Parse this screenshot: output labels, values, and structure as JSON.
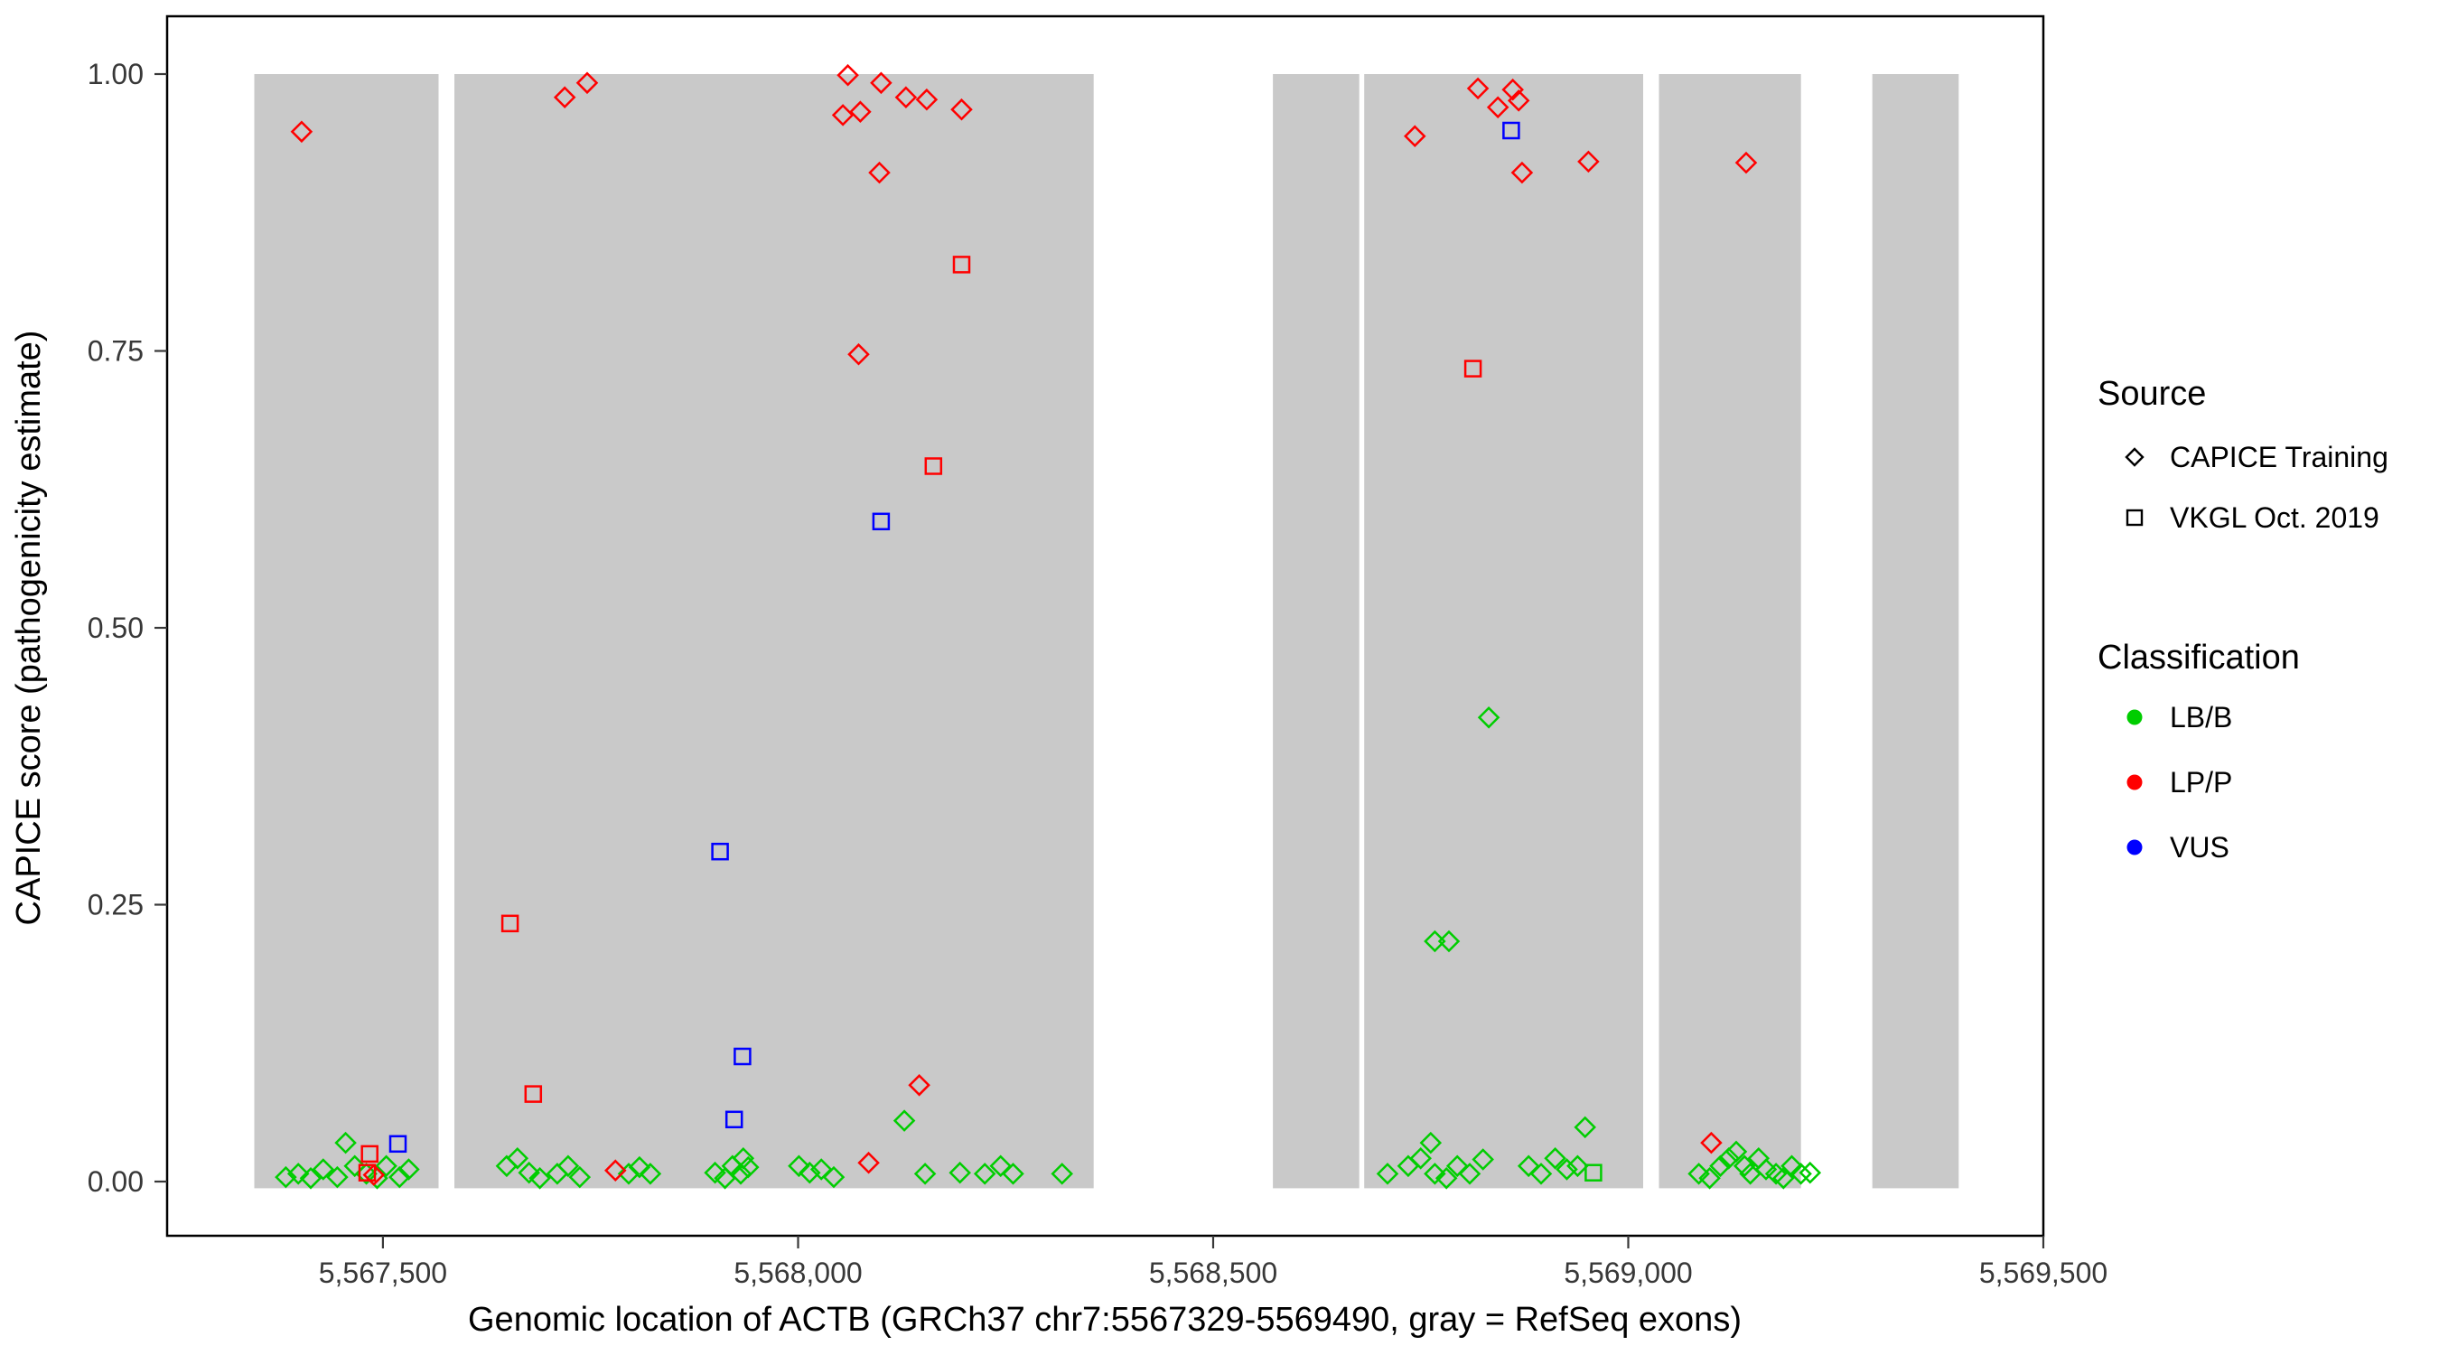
{
  "chart_data": {
    "type": "scatter",
    "title": "",
    "xlabel": "Genomic location of ACTB (GRCh37 chr7:5567329-5569490, gray = RefSeq exons)",
    "ylabel": "CAPICE score (pathogenicity estimate)",
    "xlim": [
      5567240,
      5569500
    ],
    "ylim": [
      0,
      1
    ],
    "grid": false,
    "legend_position": "right",
    "x_ticks": [
      {
        "value": 5567500,
        "label": "5,567,500"
      },
      {
        "value": 5568000,
        "label": "5,568,000"
      },
      {
        "value": 5568500,
        "label": "5,568,500"
      },
      {
        "value": 5569000,
        "label": "5,569,000"
      },
      {
        "value": 5569500,
        "label": "5,569,500"
      }
    ],
    "y_ticks": [
      {
        "value": 0.0,
        "label": "0.00"
      },
      {
        "value": 0.25,
        "label": "0.25"
      },
      {
        "value": 0.5,
        "label": "0.50"
      },
      {
        "value": 0.75,
        "label": "0.75"
      },
      {
        "value": 1.0,
        "label": "1.00"
      }
    ],
    "exon_color": "#C9C9C9",
    "refseq_exons": [
      {
        "start": 5567345,
        "end": 5567567
      },
      {
        "start": 5567586,
        "end": 5568356
      },
      {
        "start": 5568572,
        "end": 5568676
      },
      {
        "start": 5568682,
        "end": 5569018
      },
      {
        "start": 5569037,
        "end": 5569208
      },
      {
        "start": 5569294,
        "end": 5569398
      }
    ],
    "shape_by_source": {
      "CAPICE Training": "diamond",
      "VKGL Oct. 2019": "square"
    },
    "color_by_classification": {
      "LB/B": "#00CD00",
      "LP/P": "#FF0000",
      "VUS": "#0000FF"
    },
    "points_format": [
      "x_genomic_position",
      "y_capice_score",
      "source",
      "classification"
    ],
    "points": [
      [
        5567383,
        0.004,
        "CAPICE Training",
        "LB/B"
      ],
      [
        5567398,
        0.007,
        "CAPICE Training",
        "LB/B"
      ],
      [
        5567413,
        0.003,
        "CAPICE Training",
        "LB/B"
      ],
      [
        5567428,
        0.011,
        "CAPICE Training",
        "LB/B"
      ],
      [
        5567445,
        0.004,
        "CAPICE Training",
        "LB/B"
      ],
      [
        5567455,
        0.035,
        "CAPICE Training",
        "LB/B"
      ],
      [
        5567466,
        0.014,
        "CAPICE Training",
        "LB/B"
      ],
      [
        5567480,
        0.007,
        "CAPICE Training",
        "LB/B"
      ],
      [
        5567493,
        0.003,
        "CAPICE Training",
        "LB/B"
      ],
      [
        5567504,
        0.014,
        "CAPICE Training",
        "LB/B"
      ],
      [
        5567520,
        0.004,
        "CAPICE Training",
        "LB/B"
      ],
      [
        5567531,
        0.011,
        "CAPICE Training",
        "LB/B"
      ],
      [
        5567649,
        0.014,
        "CAPICE Training",
        "LB/B"
      ],
      [
        5567662,
        0.021,
        "CAPICE Training",
        "LB/B"
      ],
      [
        5567676,
        0.008,
        "CAPICE Training",
        "LB/B"
      ],
      [
        5567689,
        0.003,
        "CAPICE Training",
        "LB/B"
      ],
      [
        5567710,
        0.007,
        "CAPICE Training",
        "LB/B"
      ],
      [
        5567723,
        0.014,
        "CAPICE Training",
        "LB/B"
      ],
      [
        5567737,
        0.004,
        "CAPICE Training",
        "LB/B"
      ],
      [
        5567796,
        0.007,
        "CAPICE Training",
        "LB/B"
      ],
      [
        5567809,
        0.013,
        "CAPICE Training",
        "LB/B"
      ],
      [
        5567822,
        0.007,
        "CAPICE Training",
        "LB/B"
      ],
      [
        5567900,
        0.008,
        "CAPICE Training",
        "LB/B"
      ],
      [
        5567912,
        0.003,
        "CAPICE Training",
        "LB/B"
      ],
      [
        5567921,
        0.014,
        "CAPICE Training",
        "LB/B"
      ],
      [
        5567931,
        0.007,
        "CAPICE Training",
        "LB/B"
      ],
      [
        5567934,
        0.021,
        "CAPICE Training",
        "LB/B"
      ],
      [
        5567940,
        0.013,
        "CAPICE Training",
        "LB/B"
      ],
      [
        5568001,
        0.014,
        "CAPICE Training",
        "LB/B"
      ],
      [
        5568014,
        0.008,
        "CAPICE Training",
        "LB/B"
      ],
      [
        5568028,
        0.011,
        "CAPICE Training",
        "LB/B"
      ],
      [
        5568043,
        0.004,
        "CAPICE Training",
        "LB/B"
      ],
      [
        5568128,
        0.055,
        "CAPICE Training",
        "LB/B"
      ],
      [
        5568153,
        0.007,
        "CAPICE Training",
        "LB/B"
      ],
      [
        5568195,
        0.008,
        "CAPICE Training",
        "LB/B"
      ],
      [
        5568225,
        0.007,
        "CAPICE Training",
        "LB/B"
      ],
      [
        5568244,
        0.014,
        "CAPICE Training",
        "LB/B"
      ],
      [
        5568259,
        0.007,
        "CAPICE Training",
        "LB/B"
      ],
      [
        5568318,
        0.007,
        "CAPICE Training",
        "LB/B"
      ],
      [
        5568710,
        0.007,
        "CAPICE Training",
        "LB/B"
      ],
      [
        5568735,
        0.014,
        "CAPICE Training",
        "LB/B"
      ],
      [
        5568750,
        0.021,
        "CAPICE Training",
        "LB/B"
      ],
      [
        5568762,
        0.035,
        "CAPICE Training",
        "LB/B"
      ],
      [
        5568767,
        0.007,
        "CAPICE Training",
        "LB/B"
      ],
      [
        5568781,
        0.003,
        "CAPICE Training",
        "LB/B"
      ],
      [
        5568794,
        0.014,
        "CAPICE Training",
        "LB/B"
      ],
      [
        5568809,
        0.007,
        "CAPICE Training",
        "LB/B"
      ],
      [
        5568825,
        0.02,
        "CAPICE Training",
        "LB/B"
      ],
      [
        5568880,
        0.014,
        "CAPICE Training",
        "LB/B"
      ],
      [
        5568895,
        0.007,
        "CAPICE Training",
        "LB/B"
      ],
      [
        5568912,
        0.021,
        "CAPICE Training",
        "LB/B"
      ],
      [
        5568926,
        0.011,
        "CAPICE Training",
        "LB/B"
      ],
      [
        5568939,
        0.014,
        "CAPICE Training",
        "LB/B"
      ],
      [
        5568948,
        0.049,
        "CAPICE Training",
        "LB/B"
      ],
      [
        5568767,
        0.217,
        "CAPICE Training",
        "LB/B"
      ],
      [
        5568784,
        0.217,
        "CAPICE Training",
        "LB/B"
      ],
      [
        5568832,
        0.419,
        "CAPICE Training",
        "LB/B"
      ],
      [
        5569085,
        0.007,
        "CAPICE Training",
        "LB/B"
      ],
      [
        5569098,
        0.003,
        "CAPICE Training",
        "LB/B"
      ],
      [
        5569111,
        0.014,
        "CAPICE Training",
        "LB/B"
      ],
      [
        5569121,
        0.021,
        "CAPICE Training",
        "LB/B"
      ],
      [
        5569130,
        0.027,
        "CAPICE Training",
        "LB/B"
      ],
      [
        5569140,
        0.014,
        "CAPICE Training",
        "LB/B"
      ],
      [
        5569147,
        0.007,
        "CAPICE Training",
        "LB/B"
      ],
      [
        5569157,
        0.021,
        "CAPICE Training",
        "LB/B"
      ],
      [
        5569166,
        0.011,
        "CAPICE Training",
        "LB/B"
      ],
      [
        5569178,
        0.007,
        "CAPICE Training",
        "LB/B"
      ],
      [
        5569187,
        0.003,
        "CAPICE Training",
        "LB/B"
      ],
      [
        5569197,
        0.014,
        "CAPICE Training",
        "LB/B"
      ],
      [
        5569208,
        0.007,
        "CAPICE Training",
        "LB/B"
      ],
      [
        5569219,
        0.008,
        "CAPICE Training",
        "LB/B"
      ],
      [
        5568958,
        0.008,
        "VKGL Oct. 2019",
        "LB/B"
      ],
      [
        5567402,
        0.948,
        "CAPICE Training",
        "LP/P"
      ],
      [
        5567719,
        0.979,
        "CAPICE Training",
        "LP/P"
      ],
      [
        5567746,
        0.992,
        "CAPICE Training",
        "LP/P"
      ],
      [
        5568054,
        0.963,
        "CAPICE Training",
        "LP/P"
      ],
      [
        5568060,
        0.999,
        "CAPICE Training",
        "LP/P"
      ],
      [
        5568075,
        0.966,
        "CAPICE Training",
        "LP/P"
      ],
      [
        5568098,
        0.911,
        "CAPICE Training",
        "LP/P"
      ],
      [
        5568100,
        0.992,
        "CAPICE Training",
        "LP/P"
      ],
      [
        5568130,
        0.979,
        "CAPICE Training",
        "LP/P"
      ],
      [
        5568155,
        0.977,
        "CAPICE Training",
        "LP/P"
      ],
      [
        5568197,
        0.968,
        "CAPICE Training",
        "LP/P"
      ],
      [
        5568073,
        0.747,
        "CAPICE Training",
        "LP/P"
      ],
      [
        5568146,
        0.087,
        "CAPICE Training",
        "LP/P"
      ],
      [
        5568085,
        0.017,
        "CAPICE Training",
        "LP/P"
      ],
      [
        5567780,
        0.01,
        "CAPICE Training",
        "LP/P"
      ],
      [
        5567489,
        0.006,
        "CAPICE Training",
        "LP/P"
      ],
      [
        5568743,
        0.944,
        "CAPICE Training",
        "LP/P"
      ],
      [
        5568819,
        0.987,
        "CAPICE Training",
        "LP/P"
      ],
      [
        5568843,
        0.97,
        "CAPICE Training",
        "LP/P"
      ],
      [
        5568861,
        0.986,
        "CAPICE Training",
        "LP/P"
      ],
      [
        5568868,
        0.976,
        "CAPICE Training",
        "LP/P"
      ],
      [
        5568872,
        0.911,
        "CAPICE Training",
        "LP/P"
      ],
      [
        5568952,
        0.921,
        "CAPICE Training",
        "LP/P"
      ],
      [
        5569142,
        0.92,
        "CAPICE Training",
        "LP/P"
      ],
      [
        5569100,
        0.035,
        "CAPICE Training",
        "LP/P"
      ],
      [
        5568197,
        0.828,
        "VKGL Oct. 2019",
        "LP/P"
      ],
      [
        5568163,
        0.646,
        "VKGL Oct. 2019",
        "LP/P"
      ],
      [
        5567653,
        0.233,
        "VKGL Oct. 2019",
        "LP/P"
      ],
      [
        5567681,
        0.079,
        "VKGL Oct. 2019",
        "LP/P"
      ],
      [
        5567484,
        0.025,
        "VKGL Oct. 2019",
        "LP/P"
      ],
      [
        5567481,
        0.008,
        "VKGL Oct. 2019",
        "LP/P"
      ],
      [
        5568813,
        0.734,
        "VKGL Oct. 2019",
        "LP/P"
      ],
      [
        5568100,
        0.596,
        "VKGL Oct. 2019",
        "VUS"
      ],
      [
        5567906,
        0.298,
        "VKGL Oct. 2019",
        "VUS"
      ],
      [
        5567933,
        0.113,
        "VKGL Oct. 2019",
        "VUS"
      ],
      [
        5567923,
        0.056,
        "VKGL Oct. 2019",
        "VUS"
      ],
      [
        5567518,
        0.034,
        "VKGL Oct. 2019",
        "VUS"
      ],
      [
        5568859,
        0.949,
        "VKGL Oct. 2019",
        "VUS"
      ]
    ]
  },
  "legend": {
    "source_title": "Source",
    "source_items": [
      {
        "label": "CAPICE Training",
        "shape": "diamond"
      },
      {
        "label": "VKGL Oct. 2019",
        "shape": "square"
      }
    ],
    "classification_title": "Classification",
    "classification_items": [
      {
        "label": "LB/B",
        "color": "#00CD00"
      },
      {
        "label": "LP/P",
        "color": "#FF0000"
      },
      {
        "label": "VUS",
        "color": "#0000FF"
      }
    ]
  }
}
